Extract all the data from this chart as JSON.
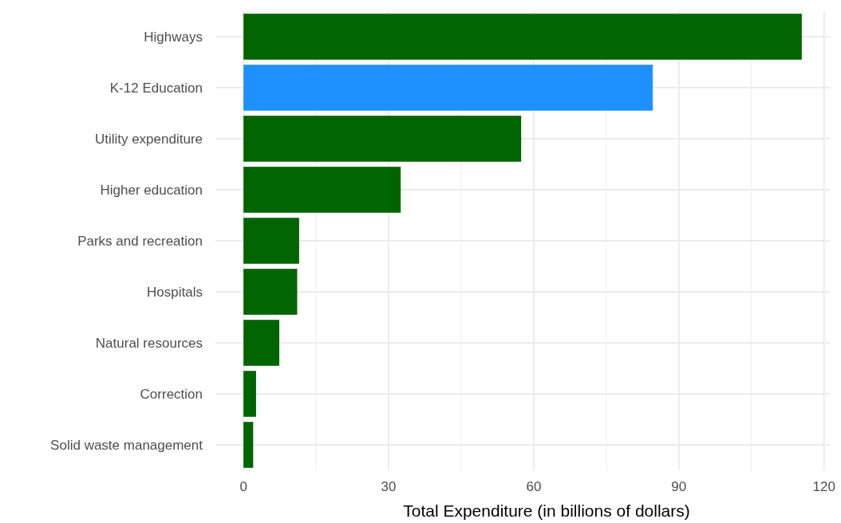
{
  "chart_data": {
    "type": "bar",
    "orientation": "horizontal",
    "xlabel": "Total Expenditure (in billions of dollars)",
    "categories": [
      "Highways",
      "K-12 Education",
      "Utility expenditure",
      "Higher education",
      "Parks and recreation",
      "Hospitals",
      "Natural resources",
      "Correction",
      "Solid waste management"
    ],
    "values": [
      115.4,
      84.6,
      57.4,
      32.5,
      11.5,
      11.1,
      7.4,
      2.6,
      2.0
    ],
    "colors": [
      "#006400",
      "#1e90ff",
      "#006400",
      "#006400",
      "#006400",
      "#006400",
      "#006400",
      "#006400",
      "#006400"
    ],
    "xlim": [
      -5.8,
      121.2
    ],
    "xticks": [
      0,
      {
        "value": 15,
        "label": null
      },
      30,
      {
        "value": 45,
        "label": null
      },
      60,
      {
        "value": 75,
        "label": null
      },
      90,
      {
        "value": 105,
        "label": null
      },
      120
    ],
    "grid": true
  }
}
